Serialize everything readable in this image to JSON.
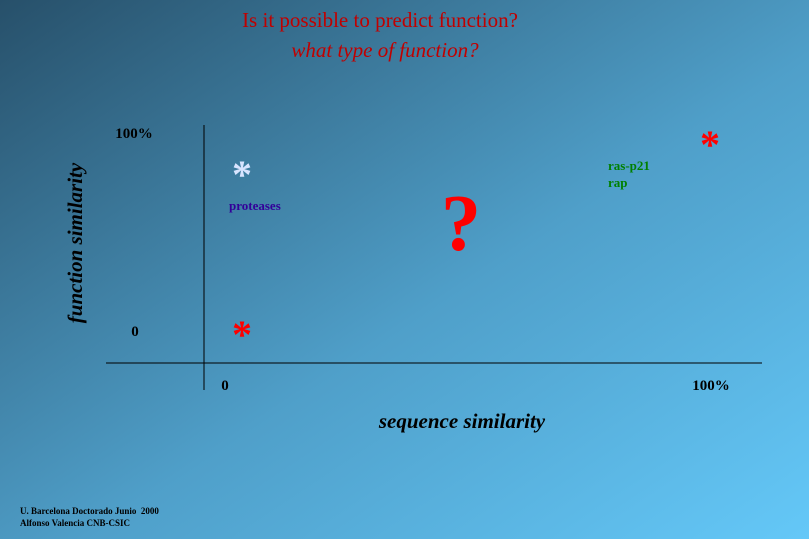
{
  "title": {
    "line1": "Is it possible to predict function?",
    "line2": "what type of function?"
  },
  "axes": {
    "y_label": "function similarity",
    "x_label": "sequence similarity",
    "y_ticks": [
      "100%",
      "0"
    ],
    "x_ticks": [
      "0",
      "100%"
    ]
  },
  "points": [
    {
      "symbol": "*",
      "labels": [
        "proteases"
      ]
    },
    {
      "symbol": "*",
      "labels": []
    },
    {
      "symbol": "*",
      "labels": [
        "ras-p21",
        "rap"
      ]
    }
  ],
  "question": "?",
  "footer": [
    "U. Barcelona Doctorado Junio  2000",
    "Alfonso Valencia CNB-CSIC"
  ]
}
